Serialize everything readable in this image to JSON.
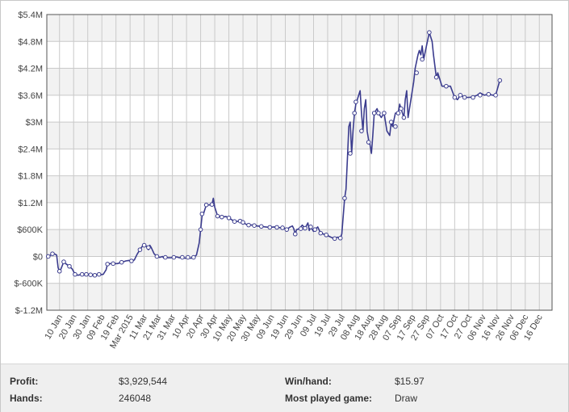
{
  "chart_data": {
    "type": "line",
    "title": "",
    "xlabel": "",
    "ylabel": "",
    "grid": true,
    "legend": "none",
    "ylim": [
      -1200000,
      5400000
    ],
    "y_ticks": [
      -1200000,
      -600000,
      0,
      600000,
      1200000,
      1800000,
      2400000,
      3000000,
      3600000,
      4200000,
      4800000,
      5400000
    ],
    "y_tick_labels": [
      "$-1.2M",
      "$-600K",
      "$0",
      "$600K",
      "$1.2M",
      "$1.8M",
      "$2.4M",
      "$3M",
      "$3.6M",
      "$4.2M",
      "$4.8M",
      "$5.4M"
    ],
    "x_tick_labels": [
      "10 Jan",
      "20 Jan",
      "30 Jan",
      "09 Feb",
      "19 Feb",
      "Mar 2015",
      "11 Mar",
      "21 Mar",
      "31 Mar",
      "10 Apr",
      "20 Apr",
      "30 Apr",
      "10 May",
      "20 May",
      "30 May",
      "09 Jun",
      "19 Jun",
      "29 Jun",
      "09 Jul",
      "19 Jul",
      "29 Jul",
      "08 Aug",
      "18 Aug",
      "28 Aug",
      "07 Sep",
      "17 Sep",
      "27 Sep",
      "07 Oct",
      "17 Oct",
      "27 Oct",
      "06 Nov",
      "16 Nov",
      "26 Nov",
      "06 Dec",
      "16 Dec"
    ],
    "x_tick_days": [
      9,
      19,
      29,
      39,
      49,
      59,
      69,
      79,
      89,
      99,
      109,
      119,
      129,
      139,
      149,
      159,
      169,
      179,
      189,
      199,
      209,
      219,
      229,
      239,
      249,
      259,
      269,
      279,
      289,
      299,
      309,
      319,
      329,
      339,
      349
    ],
    "x_range_days": [
      0,
      358
    ],
    "colors": {
      "line": "#3b3c8e",
      "marker_fill": "#ffffff",
      "band": "#f2f2f2",
      "grid": "#c9c9c9"
    },
    "series": [
      {
        "points": [
          [
            1,
            0
          ],
          [
            4,
            50000
          ],
          [
            5,
            60000
          ],
          [
            6,
            50000
          ],
          [
            7,
            30000
          ],
          [
            8,
            -250000
          ],
          [
            9,
            -330000
          ],
          [
            10,
            -280000
          ],
          [
            12,
            -120000
          ],
          [
            13,
            -150000
          ],
          [
            16,
            -220000
          ],
          [
            18,
            -280000
          ],
          [
            20,
            -400000
          ],
          [
            22,
            -420000
          ],
          [
            25,
            -400000
          ],
          [
            26,
            -420000
          ],
          [
            28,
            -400000
          ],
          [
            30,
            -410000
          ],
          [
            33,
            -420000
          ],
          [
            36,
            -400000
          ],
          [
            38,
            -410000
          ],
          [
            40,
            -400000
          ],
          [
            42,
            -300000
          ],
          [
            43,
            -170000
          ],
          [
            45,
            -160000
          ],
          [
            47,
            -160000
          ],
          [
            50,
            -160000
          ],
          [
            53,
            -130000
          ],
          [
            56,
            -100000
          ],
          [
            58,
            -90000
          ],
          [
            60,
            -100000
          ],
          [
            62,
            -80000
          ],
          [
            64,
            50000
          ],
          [
            66,
            150000
          ],
          [
            68,
            240000
          ],
          [
            70,
            250000
          ],
          [
            72,
            150000
          ],
          [
            73,
            250000
          ],
          [
            74,
            200000
          ],
          [
            76,
            60000
          ],
          [
            78,
            0
          ],
          [
            80,
            -20000
          ],
          [
            82,
            0
          ],
          [
            83,
            -40000
          ],
          [
            84,
            -20000
          ],
          [
            86,
            -30000
          ],
          [
            88,
            -30000
          ],
          [
            90,
            -20000
          ],
          [
            92,
            -10000
          ],
          [
            94,
            -30000
          ],
          [
            96,
            -20000
          ],
          [
            98,
            -40000
          ],
          [
            100,
            -20000
          ],
          [
            102,
            -40000
          ],
          [
            104,
            -20000
          ],
          [
            106,
            30000
          ],
          [
            108,
            300000
          ],
          [
            109,
            600000
          ],
          [
            110,
            900000
          ],
          [
            111,
            950000
          ],
          [
            113,
            1150000
          ],
          [
            115,
            1150000
          ],
          [
            117,
            1160000
          ],
          [
            118,
            1300000
          ],
          [
            119,
            1100000
          ],
          [
            121,
            900000
          ],
          [
            124,
            880000
          ],
          [
            127,
            890000
          ],
          [
            129,
            860000
          ],
          [
            132,
            800000
          ],
          [
            134,
            780000
          ],
          [
            137,
            790000
          ],
          [
            139,
            760000
          ],
          [
            141,
            720000
          ],
          [
            143,
            700000
          ],
          [
            146,
            700000
          ],
          [
            149,
            680000
          ],
          [
            152,
            670000
          ],
          [
            155,
            660000
          ],
          [
            158,
            650000
          ],
          [
            161,
            660000
          ],
          [
            163,
            650000
          ],
          [
            166,
            640000
          ],
          [
            168,
            640000
          ],
          [
            170,
            600000
          ],
          [
            172,
            650000
          ],
          [
            174,
            680000
          ],
          [
            175,
            620000
          ],
          [
            176,
            500000
          ],
          [
            177,
            600000
          ],
          [
            179,
            620000
          ],
          [
            181,
            700000
          ],
          [
            183,
            630000
          ],
          [
            185,
            750000
          ],
          [
            186,
            580000
          ],
          [
            187,
            660000
          ],
          [
            189,
            560000
          ],
          [
            190,
            600000
          ],
          [
            192,
            660000
          ],
          [
            194,
            520000
          ],
          [
            196,
            500000
          ],
          [
            198,
            480000
          ],
          [
            200,
            450000
          ],
          [
            202,
            420000
          ],
          [
            204,
            400000
          ],
          [
            206,
            430000
          ],
          [
            208,
            410000
          ],
          [
            209,
            500000
          ],
          [
            211,
            1300000
          ],
          [
            212,
            1500000
          ],
          [
            213,
            2200000
          ],
          [
            214,
            2900000
          ],
          [
            215,
            3000000
          ],
          [
            216,
            2300000
          ],
          [
            217,
            2800000
          ],
          [
            218,
            3200000
          ],
          [
            219,
            3400000
          ],
          [
            220,
            3500000
          ],
          [
            221,
            3600000
          ],
          [
            222,
            3700000
          ],
          [
            223,
            3200000
          ],
          [
            224,
            2800000
          ],
          [
            225,
            3300000
          ],
          [
            226,
            3500000
          ],
          [
            227,
            2800000
          ],
          [
            228,
            2600000
          ],
          [
            229,
            2500000
          ],
          [
            230,
            2300000
          ],
          [
            231,
            2700000
          ],
          [
            232,
            3200000
          ],
          [
            234,
            3300000
          ],
          [
            235,
            3200000
          ],
          [
            237,
            3100000
          ],
          [
            239,
            3200000
          ],
          [
            241,
            2800000
          ],
          [
            243,
            2700000
          ],
          [
            244,
            3000000
          ],
          [
            245,
            2900000
          ],
          [
            247,
            3200000
          ],
          [
            249,
            3200000
          ],
          [
            250,
            3400000
          ],
          [
            251,
            3300000
          ],
          [
            253,
            3100000
          ],
          [
            254,
            3500000
          ],
          [
            255,
            3700000
          ],
          [
            256,
            3100000
          ],
          [
            258,
            3500000
          ],
          [
            260,
            3900000
          ],
          [
            261,
            4200000
          ],
          [
            263,
            4500000
          ],
          [
            264,
            4600000
          ],
          [
            265,
            4500000
          ],
          [
            266,
            4700000
          ],
          [
            267,
            4400000
          ],
          [
            269,
            4700000
          ],
          [
            271,
            5000000
          ],
          [
            273,
            4800000
          ],
          [
            274,
            4500000
          ],
          [
            276,
            4000000
          ],
          [
            277,
            4100000
          ],
          [
            279,
            3900000
          ],
          [
            280,
            3800000
          ],
          [
            283,
            3800000
          ],
          [
            286,
            3800000
          ],
          [
            289,
            3550000
          ],
          [
            291,
            3500000
          ],
          [
            293,
            3600000
          ],
          [
            296,
            3550000
          ],
          [
            299,
            3550000
          ],
          [
            302,
            3560000
          ],
          [
            305,
            3600000
          ],
          [
            307,
            3650000
          ],
          [
            310,
            3600000
          ],
          [
            313,
            3620000
          ],
          [
            316,
            3600000
          ],
          [
            318,
            3600000
          ],
          [
            321,
            3929544
          ]
        ],
        "markers": [
          [
            1,
            0
          ],
          [
            4,
            60000
          ],
          [
            9,
            -330000
          ],
          [
            12,
            -120000
          ],
          [
            16,
            -220000
          ],
          [
            20,
            -400000
          ],
          [
            25,
            -400000
          ],
          [
            28,
            -400000
          ],
          [
            31,
            -410000
          ],
          [
            34,
            -420000
          ],
          [
            37,
            -400000
          ],
          [
            43,
            -170000
          ],
          [
            47,
            -160000
          ],
          [
            53,
            -130000
          ],
          [
            60,
            -100000
          ],
          [
            66,
            150000
          ],
          [
            69,
            250000
          ],
          [
            72,
            200000
          ],
          [
            78,
            0
          ],
          [
            84,
            -20000
          ],
          [
            90,
            -20000
          ],
          [
            96,
            -20000
          ],
          [
            100,
            -20000
          ],
          [
            104,
            -20000
          ],
          [
            109,
            600000
          ],
          [
            110,
            950000
          ],
          [
            113,
            1150000
          ],
          [
            117,
            1160000
          ],
          [
            121,
            900000
          ],
          [
            124,
            880000
          ],
          [
            129,
            860000
          ],
          [
            133,
            780000
          ],
          [
            137,
            790000
          ],
          [
            139,
            760000
          ],
          [
            143,
            700000
          ],
          [
            147,
            690000
          ],
          [
            152,
            670000
          ],
          [
            158,
            650000
          ],
          [
            163,
            650000
          ],
          [
            167,
            640000
          ],
          [
            170,
            600000
          ],
          [
            176,
            500000
          ],
          [
            180,
            620000
          ],
          [
            183,
            630000
          ],
          [
            187,
            660000
          ],
          [
            190,
            600000
          ],
          [
            194,
            520000
          ],
          [
            198,
            480000
          ],
          [
            204,
            400000
          ],
          [
            208,
            410000
          ],
          [
            211,
            1300000
          ],
          [
            215,
            2300000
          ],
          [
            218,
            3200000
          ],
          [
            219,
            3450000
          ],
          [
            223,
            2800000
          ],
          [
            228,
            2550000
          ],
          [
            232,
            3200000
          ],
          [
            235,
            3200000
          ],
          [
            239,
            3200000
          ],
          [
            244,
            3000000
          ],
          [
            247,
            2900000
          ],
          [
            249,
            3200000
          ],
          [
            251,
            3300000
          ],
          [
            253,
            3100000
          ],
          [
            262,
            4100000
          ],
          [
            266,
            4400000
          ],
          [
            271,
            5000000
          ],
          [
            276,
            4000000
          ],
          [
            283,
            3800000
          ],
          [
            289,
            3550000
          ],
          [
            293,
            3600000
          ],
          [
            296,
            3550000
          ],
          [
            302,
            3550000
          ],
          [
            307,
            3600000
          ],
          [
            313,
            3620000
          ],
          [
            318,
            3600000
          ],
          [
            321,
            3929544
          ]
        ]
      }
    ]
  },
  "stats": {
    "profit_label": "Profit:",
    "profit_value": "$3,929,544",
    "hands_label": "Hands:",
    "hands_value": "246048",
    "winhand_label": "Win/hand:",
    "winhand_value": "$15.97",
    "most_played_label": "Most played game:",
    "most_played_value": "Draw"
  }
}
